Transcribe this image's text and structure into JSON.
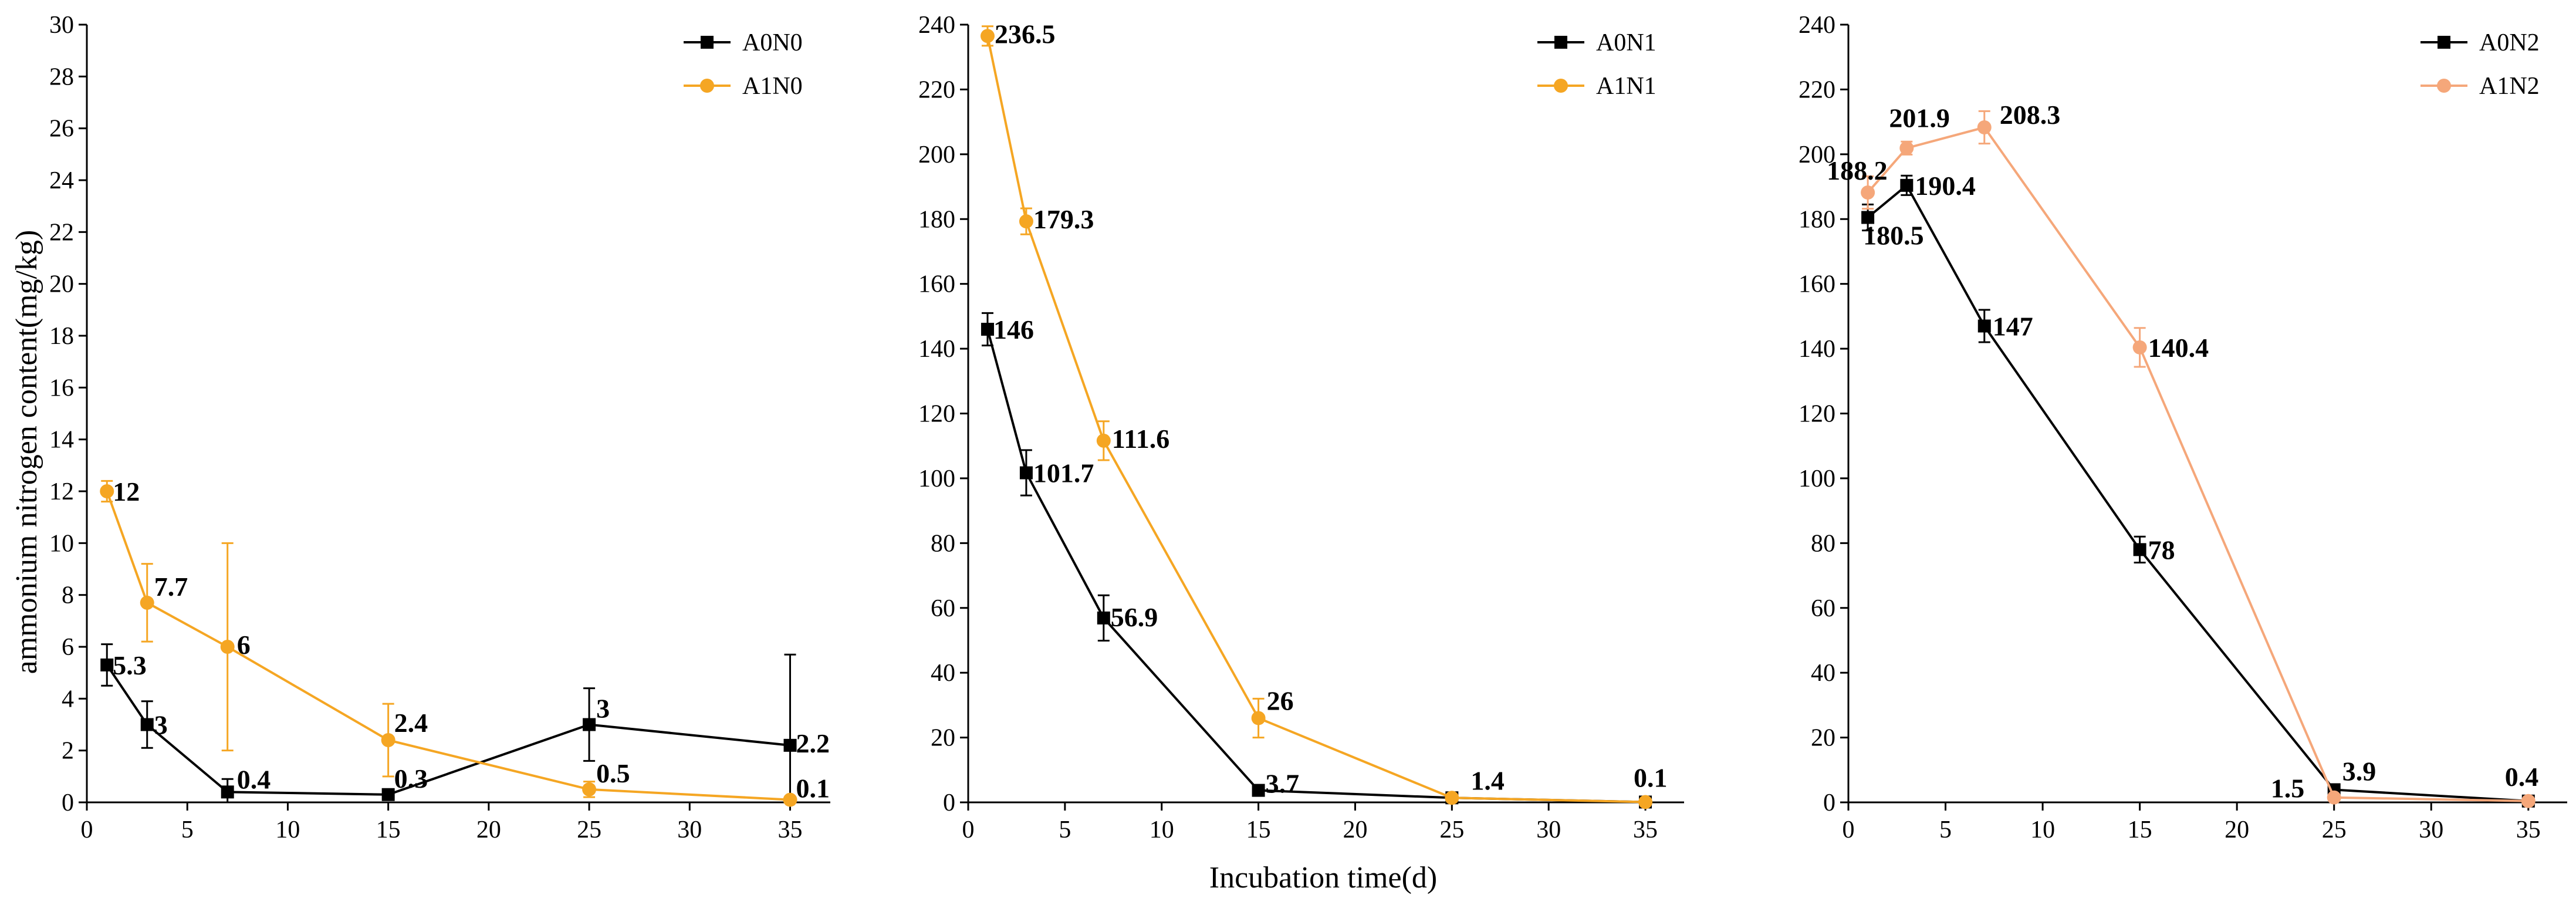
{
  "chart_data": {
    "type": "line",
    "shared_ylabel": "ammonium nitrogen content(mg/kg)",
    "shared_xlabel": "Incubation time(d)",
    "panels": [
      {
        "id": "N0",
        "x": [
          1,
          3,
          7,
          15,
          25,
          35
        ],
        "xlim": [
          0,
          37
        ],
        "xticks": [
          0,
          5,
          10,
          15,
          20,
          25,
          30,
          35
        ],
        "ylim": [
          0,
          30
        ],
        "yticks": [
          0,
          2,
          4,
          6,
          8,
          10,
          12,
          14,
          16,
          18,
          20,
          22,
          24,
          26,
          28,
          30
        ],
        "legend_position": "top-right",
        "series": [
          {
            "name": "A0N0",
            "color": "#000000",
            "marker": "square",
            "values": [
              5.3,
              3,
              0.4,
              0.3,
              3,
              2.2
            ],
            "errors": [
              0.8,
              0.9,
              0.5,
              0.2,
              1.4,
              3.5
            ],
            "labels": [
              "5.3",
              "3",
              "0.4",
              "0.3",
              "3",
              "2.2"
            ]
          },
          {
            "name": "A1N0",
            "color": "#F5A623",
            "marker": "circle",
            "values": [
              12,
              7.7,
              6,
              2.4,
              0.5,
              0.1
            ],
            "errors": [
              0.4,
              1.5,
              4.0,
              1.4,
              0.3,
              0.05
            ],
            "labels": [
              "12",
              "7.7",
              "6",
              "2.4",
              "0.5",
              "0.1"
            ]
          }
        ]
      },
      {
        "id": "N1",
        "x": [
          1,
          3,
          7,
          15,
          25,
          35
        ],
        "xlim": [
          0,
          37
        ],
        "xticks": [
          0,
          5,
          10,
          15,
          20,
          25,
          30,
          35
        ],
        "ylim": [
          0,
          240
        ],
        "yticks": [
          0,
          20,
          40,
          60,
          80,
          100,
          120,
          140,
          160,
          180,
          200,
          220,
          240
        ],
        "legend_position": "top-right",
        "series": [
          {
            "name": "A0N1",
            "color": "#000000",
            "marker": "square",
            "values": [
              146,
              101.7,
              56.9,
              3.7,
              1.4,
              0.1
            ],
            "errors": [
              5,
              7,
              7,
              1.5,
              0.5,
              0.1
            ],
            "labels": [
              "146",
              "101.7",
              "56.9",
              "3.7",
              "1.4",
              "0.1"
            ]
          },
          {
            "name": "A1N1",
            "color": "#F5A623",
            "marker": "circle",
            "values": [
              236.5,
              179.3,
              111.6,
              26,
              1.4,
              0.1
            ],
            "errors": [
              3,
              4,
              6,
              6,
              0.5,
              0.1
            ],
            "labels": [
              "236.5",
              "179.3",
              "111.6",
              "26",
              "",
              ""
            ]
          }
        ]
      },
      {
        "id": "N2",
        "x": [
          1,
          3,
          7,
          15,
          25,
          35
        ],
        "xlim": [
          0,
          37
        ],
        "xticks": [
          0,
          5,
          10,
          15,
          20,
          25,
          30,
          35
        ],
        "ylim": [
          0,
          240
        ],
        "yticks": [
          0,
          20,
          40,
          60,
          80,
          100,
          120,
          140,
          160,
          180,
          200,
          220,
          240
        ],
        "legend_position": "top-right",
        "series": [
          {
            "name": "A0N2",
            "color": "#000000",
            "marker": "square",
            "values": [
              180.5,
              190.4,
              147,
              78,
              3.9,
              0.4
            ],
            "errors": [
              4,
              3,
              5,
              4,
              1,
              0.3
            ],
            "labels": [
              "180.5",
              "190.4",
              "147",
              "78",
              "3.9",
              "0.4"
            ]
          },
          {
            "name": "A1N2",
            "color": "#F5A77A",
            "marker": "circle",
            "values": [
              188.2,
              201.9,
              208.3,
              140.4,
              1.5,
              0.4
            ],
            "errors": [
              5,
              2,
              5,
              6,
              0.5,
              0.2
            ],
            "labels": [
              "188.2",
              "201.9",
              "208.3",
              "140.4",
              "1.5",
              ""
            ]
          }
        ]
      }
    ]
  }
}
